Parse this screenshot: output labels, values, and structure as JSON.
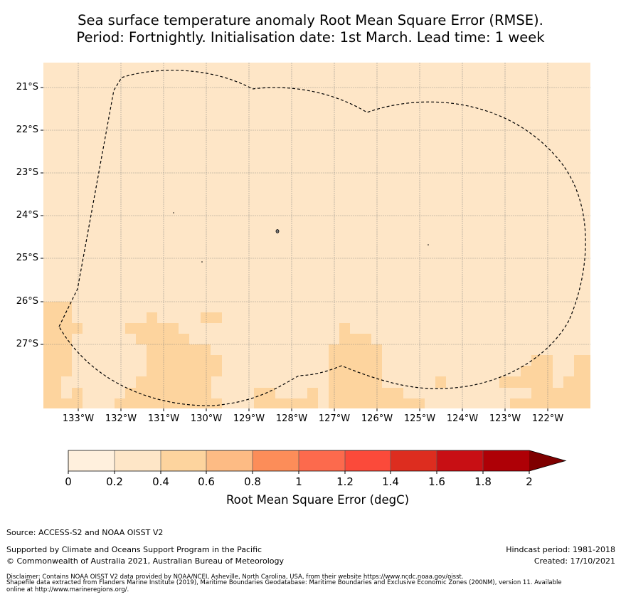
{
  "title": {
    "line1": "Sea surface temperature anomaly Root Mean Square Error (RMSE).",
    "line2": "Period: Fortnightly. Initialisation date: 1st March. Lead time: 1 week"
  },
  "map": {
    "lat_labels": [
      "21°S",
      "22°S",
      "23°S",
      "24°S",
      "25°S",
      "26°S",
      "27°S"
    ],
    "lon_labels": [
      "133°W",
      "132°W",
      "131°W",
      "130°W",
      "129°W",
      "128°W",
      "127°W",
      "126°W",
      "125°W",
      "124°W",
      "123°W",
      "122°W"
    ],
    "background_color": "#fee6c7",
    "highlight_color": "#fdd49e",
    "boundary": "EEZ dashed outline",
    "highlight_cells": [
      [
        2,
        133.9
      ],
      [
        2,
        133.6
      ],
      [
        1.7,
        133.9
      ],
      [
        1.7,
        133.6
      ],
      [
        1.5,
        133.9
      ],
      [
        1.5,
        133.6
      ],
      [
        1.3,
        133.9
      ],
      [
        0.6,
        133.9
      ]
    ]
  },
  "colorbar": {
    "ticks": [
      "0",
      "0.2",
      "0.4",
      "0.6",
      "0.8",
      "1",
      "1.2",
      "1.4",
      "1.6",
      "1.8",
      "2"
    ],
    "colors": [
      "#fff0dd",
      "#fee6c7",
      "#fdd49e",
      "#fdbb84",
      "#fc8d59",
      "#fc6a4d",
      "#fb4a3a",
      "#dd2d1f",
      "#c80f14",
      "#ae0006",
      "#7f0000"
    ],
    "label": "Root Mean Square Error (degC)"
  },
  "footer": {
    "source": "Source: ACCESS-S2 and NOAA OISST V2",
    "supported": "Supported by Climate and Oceans Support Program in the Pacific",
    "copyright": "© Commonwealth of Australia 2021, Australian Bureau of Meteorology",
    "hindcast": "Hindcast period: 1981-2018",
    "created": "Created: 17/10/2021",
    "disclaimer1": "Disclaimer: Contains NOAA OISST V2 data provided by NOAA/NCEI, Asheville, North Carolina, USA, from their website https://www.ncdc.noaa.gov/oisst.",
    "disclaimer2": "Shapefile data extracted from Flanders Marine Institute (2019), Maritime Boundaries Geodatabase: Maritime Boundaries and Exclusive Economic Zones (200NM), version 11. Available",
    "disclaimer3": "online at http://www.marineregions.org/."
  }
}
